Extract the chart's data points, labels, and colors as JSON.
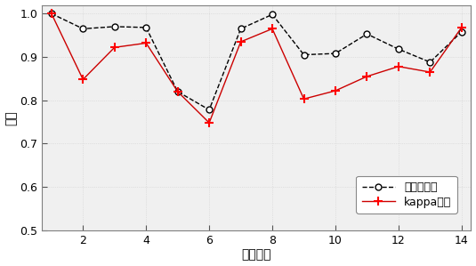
{
  "x": [
    1,
    2,
    3,
    4,
    5,
    6,
    7,
    8,
    9,
    10,
    11,
    12,
    13,
    14
  ],
  "series1": [
    1.0,
    0.965,
    0.97,
    0.968,
    0.82,
    0.778,
    0.965,
    0.998,
    0.905,
    0.908,
    0.953,
    0.918,
    0.888,
    0.958
  ],
  "series2": [
    1.0,
    0.848,
    0.922,
    0.932,
    0.82,
    0.748,
    0.935,
    0.965,
    0.803,
    0.822,
    0.855,
    0.878,
    0.865,
    0.968
  ],
  "series1_label": "本发明方法",
  "series2_label": "kappa选取",
  "xlabel": "标签序号",
  "ylabel": "精度",
  "xlim": [
    0.7,
    14.3
  ],
  "ylim": [
    0.5,
    1.02
  ],
  "yticks": [
    0.5,
    0.6,
    0.7,
    0.8,
    0.9,
    1.0
  ],
  "xticks": [
    2,
    4,
    6,
    8,
    10,
    12,
    14
  ],
  "bg_color": "#ffffff",
  "plot_bg_color": "#f0f0f0",
  "series1_color": "#000000",
  "series2_color": "#cc0000",
  "border_color": "#808080"
}
